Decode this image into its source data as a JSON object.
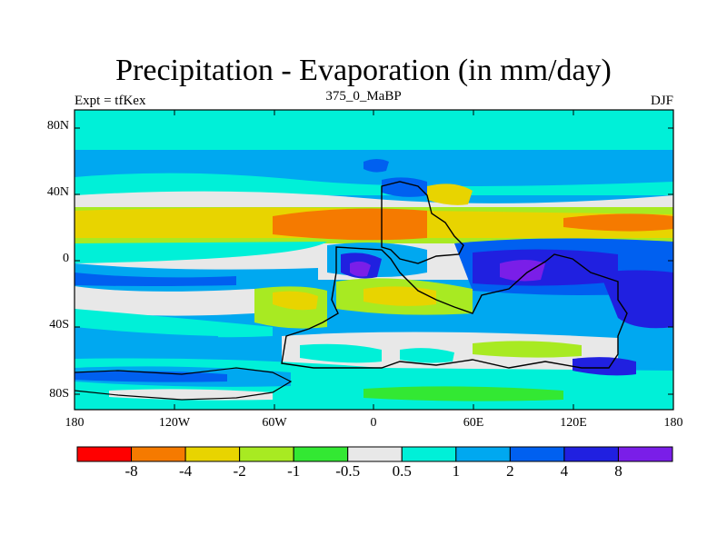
{
  "title": "Precipitation - Evaporation (in mm/day)",
  "left_string": "Expt = tfKex",
  "center_string": "375_0_MaBP",
  "right_string": "DJF",
  "map": {
    "projection": "cylindrical-equidistant",
    "lon_range": [
      -180,
      180
    ],
    "lat_range": [
      -90,
      90
    ],
    "y_ticks": [
      "80N",
      "40N",
      "0",
      "40S",
      "80S"
    ],
    "x_ticks": [
      "180",
      "120W",
      "60W",
      "0",
      "60E",
      "120E",
      "180"
    ]
  },
  "colorbar": {
    "colors": [
      "#ff0000",
      "#f57a00",
      "#e8d400",
      "#a8ea22",
      "#33e833",
      "#e8e8e8",
      "#00f0d8",
      "#00a8f0",
      "#0060f0",
      "#2020e0",
      "#7a1ee8"
    ],
    "labels": [
      "-8",
      "-4",
      "-2",
      "-1",
      "-0.5",
      "0.5",
      "1",
      "2",
      "4",
      "8"
    ]
  }
}
